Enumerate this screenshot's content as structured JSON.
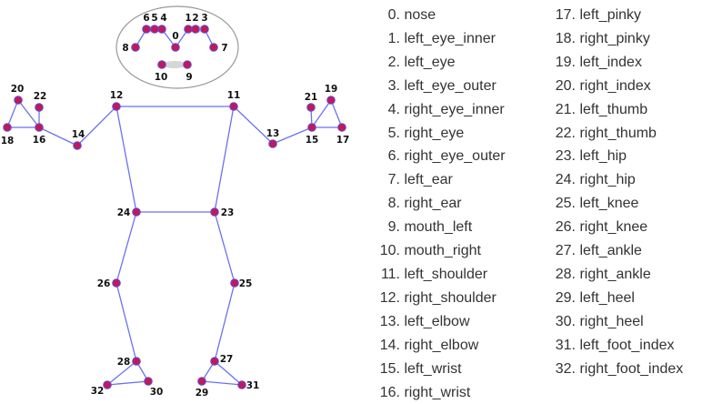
{
  "landmarks": [
    "nose",
    "left_eye_inner",
    "left_eye",
    "left_eye_outer",
    "right_eye_inner",
    "right_eye",
    "right_eye_outer",
    "left_ear",
    "right_ear",
    "mouth_left",
    "mouth_right",
    "left_shoulder",
    "right_shoulder",
    "left_elbow",
    "right_elbow",
    "left_wrist",
    "right_wrist",
    "left_pinky",
    "right_pinky",
    "left_index",
    "right_index",
    "left_thumb",
    "right_thumb",
    "left_hip",
    "right_hip",
    "left_knee",
    "right_knee",
    "left_ankle",
    "right_ankle",
    "left_heel",
    "right_heel",
    "left_foot_index",
    "right_foot_index"
  ],
  "colors": {
    "node_fill": "#c2185b",
    "node_stroke": "#5c4fd6",
    "edge": "#6b72ee",
    "face_outline": "#999999",
    "eye_fill": "#d6d6d6"
  }
}
